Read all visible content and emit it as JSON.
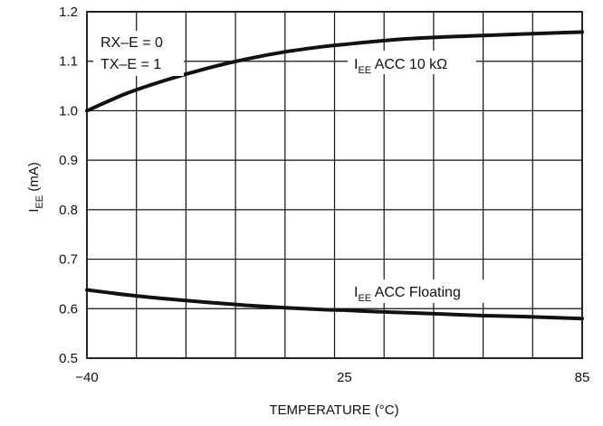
{
  "chart_data": {
    "type": "line",
    "xlabel": "TEMPERATURE (°C)",
    "ylabel": {
      "main": "I",
      "sub": "EE",
      "unit": " (mA)"
    },
    "xlim": [
      -40,
      85
    ],
    "ylim": [
      0.5,
      1.2
    ],
    "xticks": [
      -40,
      25,
      85
    ],
    "xtick_labels": [
      "−40",
      "25",
      "85"
    ],
    "yticks": [
      0.5,
      0.6,
      0.7,
      0.8,
      0.9,
      1.0,
      1.1,
      1.2
    ],
    "ytick_labels": [
      "0.5",
      "0.6",
      "0.7",
      "0.8",
      "0.9",
      "1.0",
      "1.1",
      "1.2"
    ],
    "grid": true,
    "conditions": [
      "RX–E = 0",
      "TX–E = 1"
    ],
    "series": [
      {
        "name": {
          "main": "I",
          "sub": "EE",
          "rest": " ACC 10 kΩ"
        },
        "x": [
          -40,
          -30,
          -20,
          -10,
          0,
          10,
          20,
          25,
          30,
          40,
          50,
          60,
          70,
          85
        ],
        "y": [
          1.0,
          1.035,
          1.062,
          1.085,
          1.104,
          1.119,
          1.13,
          1.134,
          1.138,
          1.145,
          1.149,
          1.152,
          1.155,
          1.159
        ]
      },
      {
        "name": {
          "main": "I",
          "sub": "EE",
          "rest": " ACC Floating"
        },
        "x": [
          -40,
          -30,
          -20,
          -10,
          0,
          10,
          20,
          25,
          30,
          40,
          50,
          60,
          70,
          85
        ],
        "y": [
          0.638,
          0.628,
          0.62,
          0.613,
          0.607,
          0.602,
          0.598,
          0.597,
          0.595,
          0.592,
          0.589,
          0.586,
          0.584,
          0.58
        ]
      }
    ]
  }
}
